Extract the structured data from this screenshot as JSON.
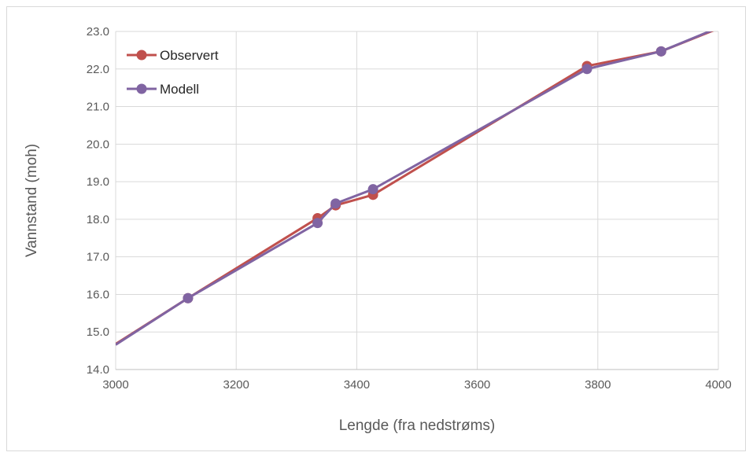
{
  "chart_data": {
    "type": "line",
    "title": "",
    "xlabel": "Lengde (fra nedstrøms)",
    "ylabel": "Vannstand (moh)",
    "xlim": [
      3000,
      4000
    ],
    "ylim": [
      14.0,
      23.0
    ],
    "x_ticks": [
      "3000",
      "3200",
      "3400",
      "3600",
      "3800",
      "4000"
    ],
    "y_ticks": [
      "14.0",
      "15.0",
      "16.0",
      "17.0",
      "18.0",
      "19.0",
      "20.0",
      "21.0",
      "22.0",
      "23.0"
    ],
    "grid": true,
    "legend_position": "top-left",
    "series": [
      {
        "name": "Observert",
        "color": "#c0504d",
        "points": [
          [
            3000,
            14.68
          ],
          [
            3120,
            15.9
          ],
          [
            3335,
            18.03
          ],
          [
            3365,
            18.37
          ],
          [
            3427,
            18.65
          ],
          [
            3782,
            22.08
          ],
          [
            3905,
            22.47
          ],
          [
            4000,
            23.08
          ]
        ],
        "marker_points": [
          [
            3120,
            15.9
          ],
          [
            3335,
            18.03
          ],
          [
            3365,
            18.37
          ],
          [
            3427,
            18.65
          ],
          [
            3782,
            22.08
          ],
          [
            3905,
            22.47
          ]
        ]
      },
      {
        "name": "Modell",
        "color": "#8064a2",
        "points": [
          [
            3000,
            14.66
          ],
          [
            3120,
            15.9
          ],
          [
            3335,
            17.9
          ],
          [
            3365,
            18.42
          ],
          [
            3427,
            18.8
          ],
          [
            3782,
            22.0
          ],
          [
            3905,
            22.47
          ],
          [
            4000,
            23.1
          ]
        ],
        "marker_points": [
          [
            3120,
            15.9
          ],
          [
            3335,
            17.9
          ],
          [
            3365,
            18.42
          ],
          [
            3427,
            18.8
          ],
          [
            3782,
            22.0
          ],
          [
            3905,
            22.47
          ]
        ]
      }
    ]
  }
}
